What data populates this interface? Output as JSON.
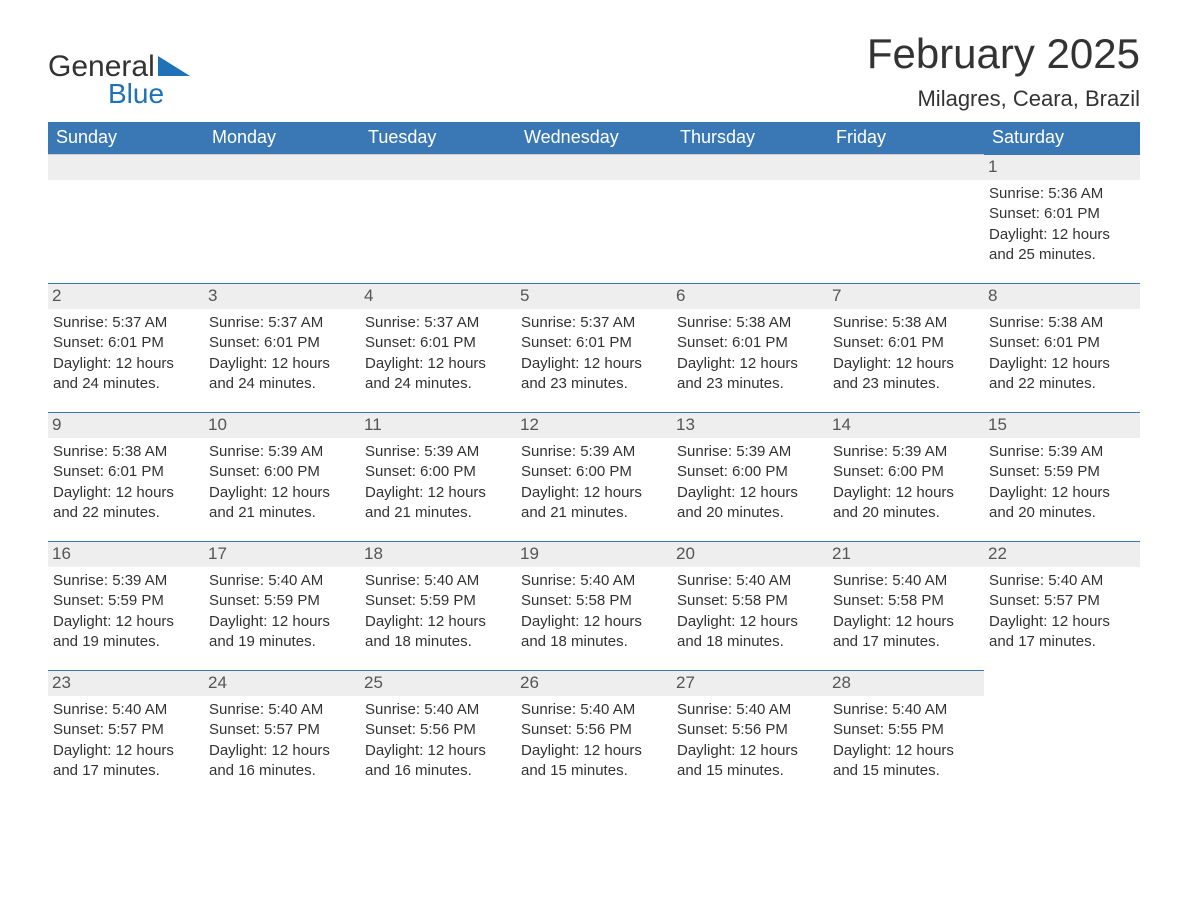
{
  "logo": {
    "text1": "General",
    "text2": "Blue",
    "triangle_color": "#1f71b8"
  },
  "title": "February 2025",
  "location": "Milagres, Ceara, Brazil",
  "colors": {
    "header_bg": "#3a78b5",
    "header_text": "#ffffff",
    "daynum_bg": "#eeeeee",
    "daynum_border": "#3a78b5",
    "text": "#333333"
  },
  "dow": [
    "Sunday",
    "Monday",
    "Tuesday",
    "Wednesday",
    "Thursday",
    "Friday",
    "Saturday"
  ],
  "weeks": [
    [
      {
        "blank": true
      },
      {
        "blank": true
      },
      {
        "blank": true
      },
      {
        "blank": true
      },
      {
        "blank": true
      },
      {
        "blank": true
      },
      {
        "n": "1",
        "sunrise": "5:36 AM",
        "sunset": "6:01 PM",
        "daylight": "12 hours and 25 minutes."
      }
    ],
    [
      {
        "n": "2",
        "sunrise": "5:37 AM",
        "sunset": "6:01 PM",
        "daylight": "12 hours and 24 minutes."
      },
      {
        "n": "3",
        "sunrise": "5:37 AM",
        "sunset": "6:01 PM",
        "daylight": "12 hours and 24 minutes."
      },
      {
        "n": "4",
        "sunrise": "5:37 AM",
        "sunset": "6:01 PM",
        "daylight": "12 hours and 24 minutes."
      },
      {
        "n": "5",
        "sunrise": "5:37 AM",
        "sunset": "6:01 PM",
        "daylight": "12 hours and 23 minutes."
      },
      {
        "n": "6",
        "sunrise": "5:38 AM",
        "sunset": "6:01 PM",
        "daylight": "12 hours and 23 minutes."
      },
      {
        "n": "7",
        "sunrise": "5:38 AM",
        "sunset": "6:01 PM",
        "daylight": "12 hours and 23 minutes."
      },
      {
        "n": "8",
        "sunrise": "5:38 AM",
        "sunset": "6:01 PM",
        "daylight": "12 hours and 22 minutes."
      }
    ],
    [
      {
        "n": "9",
        "sunrise": "5:38 AM",
        "sunset": "6:01 PM",
        "daylight": "12 hours and 22 minutes."
      },
      {
        "n": "10",
        "sunrise": "5:39 AM",
        "sunset": "6:00 PM",
        "daylight": "12 hours and 21 minutes."
      },
      {
        "n": "11",
        "sunrise": "5:39 AM",
        "sunset": "6:00 PM",
        "daylight": "12 hours and 21 minutes."
      },
      {
        "n": "12",
        "sunrise": "5:39 AM",
        "sunset": "6:00 PM",
        "daylight": "12 hours and 21 minutes."
      },
      {
        "n": "13",
        "sunrise": "5:39 AM",
        "sunset": "6:00 PM",
        "daylight": "12 hours and 20 minutes."
      },
      {
        "n": "14",
        "sunrise": "5:39 AM",
        "sunset": "6:00 PM",
        "daylight": "12 hours and 20 minutes."
      },
      {
        "n": "15",
        "sunrise": "5:39 AM",
        "sunset": "5:59 PM",
        "daylight": "12 hours and 20 minutes."
      }
    ],
    [
      {
        "n": "16",
        "sunrise": "5:39 AM",
        "sunset": "5:59 PM",
        "daylight": "12 hours and 19 minutes."
      },
      {
        "n": "17",
        "sunrise": "5:40 AM",
        "sunset": "5:59 PM",
        "daylight": "12 hours and 19 minutes."
      },
      {
        "n": "18",
        "sunrise": "5:40 AM",
        "sunset": "5:59 PM",
        "daylight": "12 hours and 18 minutes."
      },
      {
        "n": "19",
        "sunrise": "5:40 AM",
        "sunset": "5:58 PM",
        "daylight": "12 hours and 18 minutes."
      },
      {
        "n": "20",
        "sunrise": "5:40 AM",
        "sunset": "5:58 PM",
        "daylight": "12 hours and 18 minutes."
      },
      {
        "n": "21",
        "sunrise": "5:40 AM",
        "sunset": "5:58 PM",
        "daylight": "12 hours and 17 minutes."
      },
      {
        "n": "22",
        "sunrise": "5:40 AM",
        "sunset": "5:57 PM",
        "daylight": "12 hours and 17 minutes."
      }
    ],
    [
      {
        "n": "23",
        "sunrise": "5:40 AM",
        "sunset": "5:57 PM",
        "daylight": "12 hours and 17 minutes."
      },
      {
        "n": "24",
        "sunrise": "5:40 AM",
        "sunset": "5:57 PM",
        "daylight": "12 hours and 16 minutes."
      },
      {
        "n": "25",
        "sunrise": "5:40 AM",
        "sunset": "5:56 PM",
        "daylight": "12 hours and 16 minutes."
      },
      {
        "n": "26",
        "sunrise": "5:40 AM",
        "sunset": "5:56 PM",
        "daylight": "12 hours and 15 minutes."
      },
      {
        "n": "27",
        "sunrise": "5:40 AM",
        "sunset": "5:56 PM",
        "daylight": "12 hours and 15 minutes."
      },
      {
        "n": "28",
        "sunrise": "5:40 AM",
        "sunset": "5:55 PM",
        "daylight": "12 hours and 15 minutes."
      },
      {
        "blank": true,
        "noheader": true
      }
    ]
  ],
  "labels": {
    "sunrise": "Sunrise:",
    "sunset": "Sunset:",
    "daylight": "Daylight:"
  }
}
